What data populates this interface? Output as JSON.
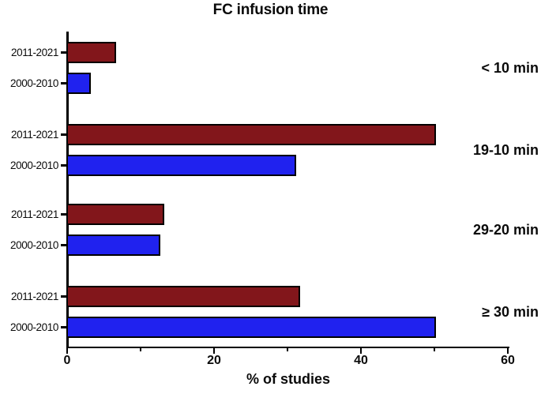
{
  "title": "FC infusion time",
  "x_axis_label": "% of studies",
  "chart_data": {
    "type": "bar",
    "orientation": "horizontal",
    "title": "FC infusion time",
    "xlabel": "% of studies",
    "ylabel": "",
    "xlim": [
      0,
      60
    ],
    "x_major_ticks": [
      0,
      20,
      40,
      60
    ],
    "x_minor_ticks": [
      10,
      30,
      50
    ],
    "grid": false,
    "legend_position": "none",
    "row_labels": [
      "2011-2021",
      "2000-2010"
    ],
    "series_colors": {
      "2011-2021": "#82161b",
      "2000-2010": "#2022ef"
    },
    "bar_border_color": "#000000",
    "groups": [
      {
        "label": "< 10 min",
        "values": {
          "2011-2021": 6.5,
          "2000-2010": 3
        }
      },
      {
        "label": "19-10 min",
        "values": {
          "2011-2021": 50,
          "2000-2010": 31
        }
      },
      {
        "label": "29-20 min",
        "values": {
          "2011-2021": 13,
          "2000-2010": 12.5
        }
      },
      {
        "label": "≥ 30 min",
        "values": {
          "2011-2021": 31.5,
          "2000-2010": 50
        }
      }
    ]
  }
}
